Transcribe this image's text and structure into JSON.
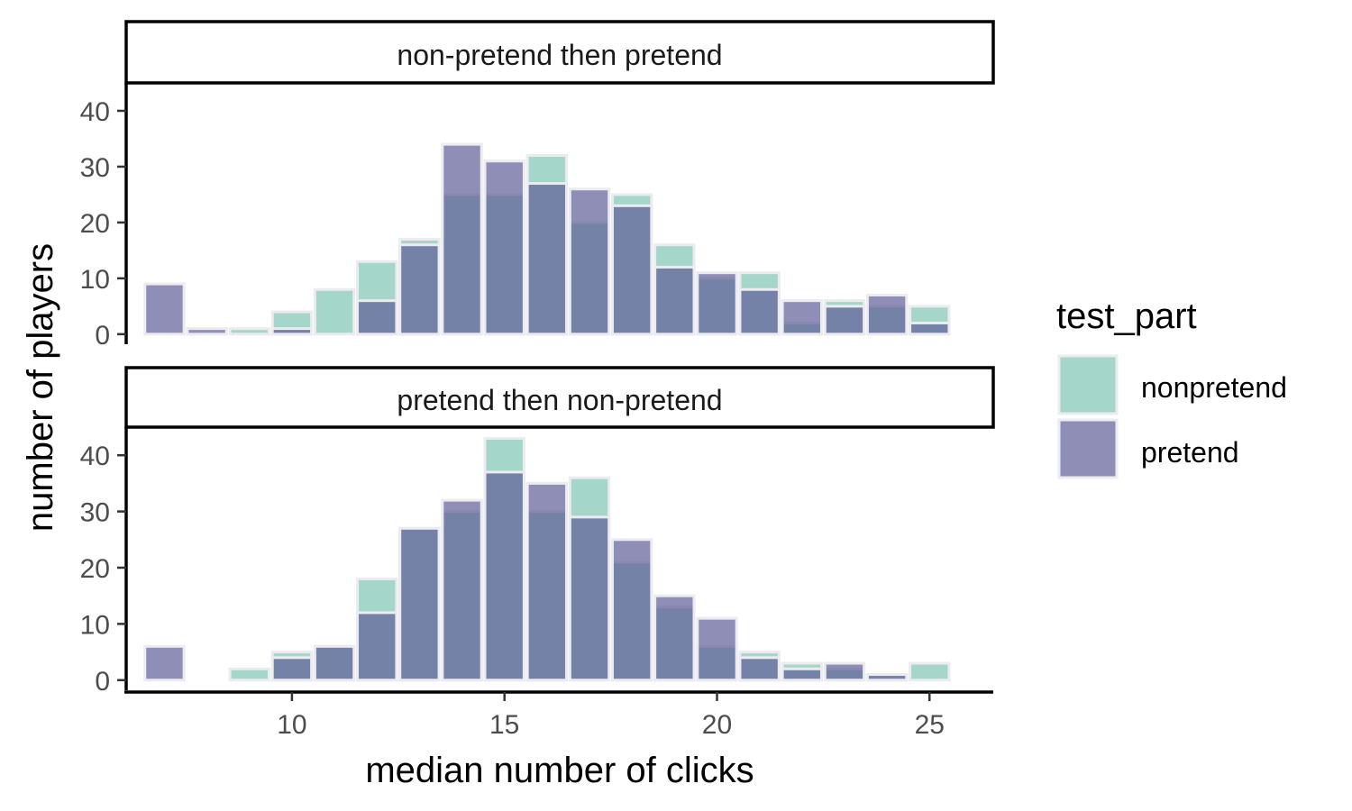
{
  "chart_data": {
    "type": "bar",
    "xlabel": "median number of clicks",
    "ylabel": "number of players",
    "x": [
      7,
      8,
      9,
      10,
      11,
      12,
      13,
      14,
      15,
      16,
      17,
      18,
      19,
      20,
      21,
      22,
      23,
      24,
      25
    ],
    "xlim": [
      6.1,
      26.5
    ],
    "ylim": [
      -1.8,
      45
    ],
    "xticks": [
      10,
      15,
      20,
      25
    ],
    "yticks": [
      0,
      10,
      20,
      30,
      40
    ],
    "legend": {
      "title": "test_part",
      "position": "right",
      "entries": [
        {
          "name": "nonpretend",
          "color": "#7fc4b3"
        },
        {
          "name": "pretend",
          "color": "#5e5e97"
        }
      ]
    },
    "panels": [
      {
        "strip": "non-pretend then pretend",
        "series": [
          {
            "name": "nonpretend",
            "values": [
              0,
              0,
              1,
              4,
              8,
              13,
              17,
              25,
              25,
              32,
              20,
              25,
              16,
              10,
              11,
              2,
              6,
              5,
              5
            ]
          },
          {
            "name": "pretend",
            "values": [
              9,
              1,
              0,
              1,
              0,
              6,
              16,
              34,
              31,
              27,
              26,
              23,
              12,
              11,
              8,
              6,
              5,
              7,
              2
            ]
          }
        ]
      },
      {
        "strip": "pretend then non-pretend",
        "series": [
          {
            "name": "nonpretend",
            "values": [
              0,
              0,
              2,
              5,
              6,
              18,
              27,
              30,
              43,
              30,
              36,
              21,
              13,
              6,
              5,
              3,
              2,
              1,
              3
            ]
          },
          {
            "name": "pretend",
            "values": [
              6,
              0,
              0,
              4,
              6,
              12,
              27,
              32,
              37,
              35,
              29,
              25,
              15,
              11,
              4,
              2,
              3,
              1,
              0
            ]
          }
        ]
      }
    ]
  }
}
